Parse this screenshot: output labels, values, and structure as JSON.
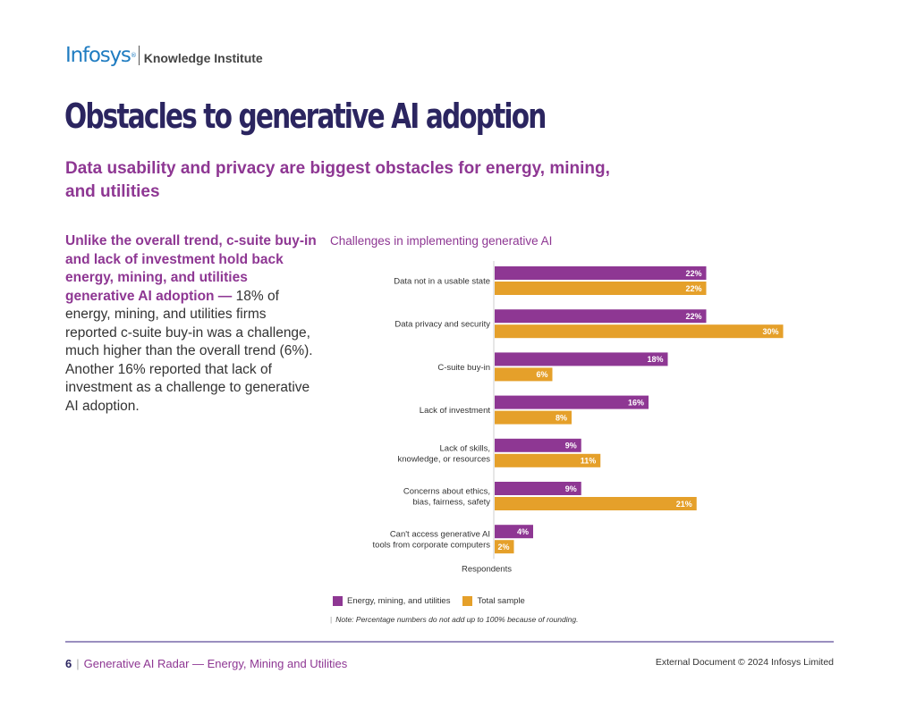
{
  "header": {
    "brand": "Infosys",
    "registered": "®",
    "division": "Knowledge Institute"
  },
  "page_title": "Obstacles to generative AI adoption",
  "subtitle": "Data usability and privacy are biggest obstacles for energy, mining, and utilities",
  "body": {
    "lead": "Unlike the overall trend, c-suite buy-in and lack of investment hold back energy, mining, and utilities generative AI adoption —",
    "text": " 18% of energy, mining, and utilities firms reported c-suite buy-in was a challenge, much higher than the overall trend (6%). Another 16% reported that lack of investment as a challenge to generative AI adoption."
  },
  "chart_data": {
    "type": "bar",
    "orientation": "horizontal",
    "title": "Challenges in implementing generative AI",
    "categories": [
      [
        "Data not in a usable state"
      ],
      [
        "Data privacy and security"
      ],
      [
        "C-suite buy-in"
      ],
      [
        "Lack of investment"
      ],
      [
        "Lack of skills,",
        "knowledge, or resources"
      ],
      [
        "Concerns about ethics,",
        "bias, fairness, safety"
      ],
      [
        "Can't access generative AI",
        "tools from corporate computers"
      ]
    ],
    "series": [
      {
        "name": "Energy, mining, and utilities",
        "color": "#8e3793",
        "values": [
          22,
          22,
          18,
          16,
          9,
          9,
          4
        ]
      },
      {
        "name": "Total sample",
        "color": "#e5a02a",
        "values": [
          22,
          30,
          6,
          8,
          11,
          21,
          2
        ]
      }
    ],
    "value_suffix": "%",
    "xlabel": "Respondents",
    "xlim": [
      0,
      32
    ],
    "grid": false,
    "legend": "bottom-left"
  },
  "note": "Note: Percentage numbers do not add up to 100% because of rounding.",
  "note_marker": "|",
  "footer": {
    "page_number": "6",
    "separator": "|",
    "report_title": "Generative AI Radar — Energy, Mining and Utilities",
    "copyright": "External Document © 2024 Infosys Limited"
  }
}
